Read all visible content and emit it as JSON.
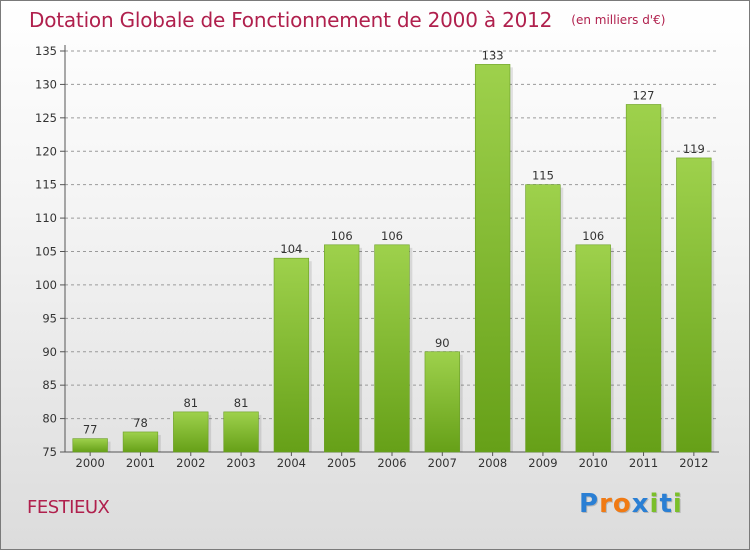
{
  "header": {
    "title": "Dotation Globale de Fonctionnement de 2000 à 2012",
    "unit_note": "(en milliers d'€)"
  },
  "commune": {
    "name": "FESTIEUX"
  },
  "logo": {
    "letters": [
      "P",
      "r",
      "o",
      "x",
      "i",
      "t",
      "i"
    ],
    "colors": [
      "#2a7fd4",
      "#f07a14",
      "#f07a14",
      "#2a7fd4",
      "#7bbf2a",
      "#2a7fd4",
      "#7bbf2a"
    ]
  },
  "colors": {
    "title": "#b0204d",
    "bar_light": "#9ed14c",
    "bar_dark": "#66a018",
    "grid": "#9a9a9a"
  },
  "chart_data": {
    "type": "bar",
    "title": "Dotation Globale de Fonctionnement de 2000 à 2012",
    "subtitle": "(en milliers d'€)",
    "categories": [
      "2000",
      "2001",
      "2002",
      "2003",
      "2004",
      "2005",
      "2006",
      "2007",
      "2008",
      "2009",
      "2010",
      "2011",
      "2012"
    ],
    "values": [
      77,
      78,
      81,
      81,
      104,
      106,
      106,
      90,
      133,
      115,
      106,
      127,
      119
    ],
    "ylim": [
      75,
      135
    ],
    "yticks": [
      75,
      80,
      85,
      90,
      95,
      100,
      105,
      110,
      115,
      120,
      125,
      130,
      135
    ],
    "grid": true,
    "data_labels": true
  }
}
